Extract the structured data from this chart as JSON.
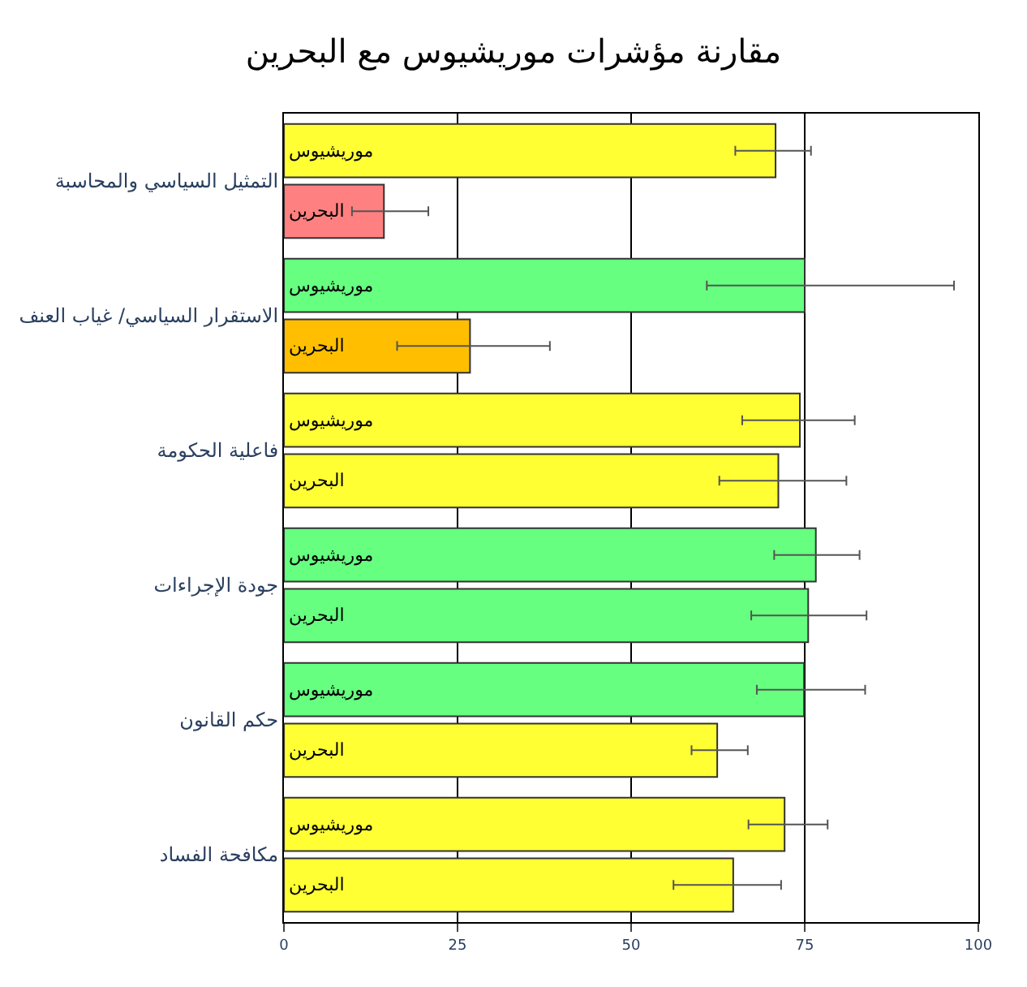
{
  "chart_data": {
    "type": "bar",
    "orientation": "horizontal",
    "title": "مقارنة مؤشرات موريشيوس مع البحرين",
    "categories": [
      "التمثيل السياسي والمحاسبة",
      "الاستقرار السياسي/ غياب العنف",
      "فاعلية الحكومة",
      "جودة الإجراءات",
      "حكم القانون",
      "مكافحة الفساد"
    ],
    "series": [
      {
        "name": "موريشيوس",
        "colors": [
          "#ffff33",
          "#66ff80",
          "#ffff33",
          "#66ff80",
          "#66ff80",
          "#ffff33"
        ],
        "values": [
          70.8,
          75.0,
          74.3,
          76.6,
          74.9,
          72.1
        ],
        "errors": [
          [
            65.0,
            75.9
          ],
          [
            60.9,
            96.5
          ],
          [
            66.0,
            82.2
          ],
          [
            70.6,
            82.9
          ],
          [
            68.1,
            83.7
          ],
          [
            66.9,
            78.3
          ]
        ]
      },
      {
        "name": "البحرين",
        "colors": [
          "#ff8080",
          "#ffbf00",
          "#ffff33",
          "#66ff80",
          "#ffff33",
          "#ffff33"
        ],
        "values": [
          14.4,
          26.8,
          71.2,
          75.5,
          62.4,
          64.7
        ],
        "errors": [
          [
            9.8,
            20.8
          ],
          [
            16.3,
            38.3
          ],
          [
            62.7,
            81.0
          ],
          [
            67.3,
            83.9
          ],
          [
            58.7,
            66.8
          ],
          [
            56.1,
            71.6
          ]
        ]
      }
    ],
    "xlim": [
      0,
      100
    ],
    "xticks": [
      0,
      25,
      50,
      75,
      100
    ],
    "grid": "x",
    "legend": false
  }
}
